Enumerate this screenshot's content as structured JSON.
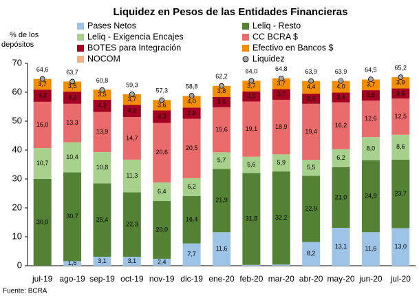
{
  "chart_data": {
    "type": "stacked_bar",
    "title": "Liquidez en Pesos de las Entidades Financieras",
    "ylabel": "% de los depósitos",
    "source": "Fuente: BCRA",
    "categories": [
      "jul-19",
      "ago-19",
      "sep-19",
      "oct-19",
      "nov-19",
      "dic-19",
      "ene-20",
      "feb-20",
      "mar-20",
      "abr-20",
      "may-20",
      "jun-20",
      "jul-20"
    ],
    "ylim": [
      0,
      70
    ],
    "yticks": [
      0,
      10,
      20,
      30,
      40,
      50,
      60,
      70
    ],
    "grid": false,
    "series": [
      {
        "name": "Pases Netos",
        "color": "#9dc3e6",
        "values": [
          0,
          1.6,
          3.1,
          3.1,
          2.4,
          7.7,
          11.6,
          0.3,
          0.4,
          8.2,
          13.1,
          11.6,
          13.0
        ],
        "value_labels": [
          null,
          "1,6",
          "3,1",
          "3,1",
          "2,4",
          "7,7",
          "11,6",
          null,
          null,
          "8,2",
          "13,1",
          "11,6",
          "13,0"
        ]
      },
      {
        "name": "Leliq - Resto",
        "color": "#548235",
        "values": [
          30.0,
          30.7,
          25.4,
          22.3,
          20.0,
          16.4,
          21.9,
          31.8,
          32.2,
          22.9,
          21.0,
          24.9,
          23.7
        ],
        "value_labels": [
          "30,0",
          "30,7",
          "25,4",
          "22,3",
          "20,0",
          "16,4",
          "21,9",
          "31,8",
          "32,2",
          "22,9",
          "21,0",
          "24,9",
          "23,7"
        ]
      },
      {
        "name": "Leliq - Exigencia Encajes",
        "color": "#a9d18e",
        "values": [
          10.7,
          10.4,
          10.8,
          11.3,
          6.4,
          6.2,
          5.7,
          5.6,
          5.9,
          5.5,
          6.2,
          8.0,
          8.6
        ],
        "value_labels": [
          "10,7",
          "10,4",
          "10,8",
          "11,3",
          "6,4",
          "6,2",
          "5,7",
          "5,6",
          "5,9",
          "5,5",
          "6,2",
          "8,0",
          "8,6"
        ]
      },
      {
        "name": "CC BCRA $",
        "color": "#ea6b6b",
        "values": [
          16.0,
          13.3,
          13.9,
          14.7,
          20.6,
          20.5,
          15.6,
          19.1,
          18.9,
          19.4,
          16.2,
          12.6,
          12.5
        ],
        "value_labels": [
          "16,0",
          "13,3",
          "13,9",
          "14,7",
          "20,6",
          "20,5",
          "15,6",
          "19,1",
          "18,9",
          "19,4",
          "16,2",
          "12,6",
          "12,5"
        ]
      },
      {
        "name": "BOTES para Integración",
        "color": "#a50021",
        "values": [
          4.2,
          4.2,
          4.2,
          4.2,
          4.3,
          3.9,
          3.6,
          3.5,
          3.7,
          3.5,
          3.4,
          3.6,
          3.5
        ],
        "value_labels": [
          "4,2",
          "4,2",
          "4,2",
          "4,2",
          "4,3",
          "3,9",
          "3,6",
          "3,5",
          "3,7",
          "3,5",
          "3,4",
          "3,6",
          "3,5"
        ]
      },
      {
        "name": "Efectivo en Bancos $",
        "color": "#f28e00",
        "values": [
          3.7,
          3.5,
          3.5,
          3.7,
          3.6,
          4.0,
          3.8,
          3.7,
          3.7,
          4.4,
          4.0,
          3.7,
          3.9
        ],
        "value_labels": [
          "3,7",
          "3,5",
          "3,5",
          "3,7",
          "3,6",
          "4,0",
          "3,8",
          "3,7",
          "3,7",
          "4,4",
          "4,0",
          "3,7",
          "3,9"
        ]
      },
      {
        "name": "NOCOM",
        "color": "#f4b183",
        "values": [
          0,
          0,
          0,
          0,
          0,
          0,
          0,
          0,
          0,
          0,
          0,
          0,
          0
        ],
        "value_labels": [
          null,
          null,
          null,
          null,
          null,
          null,
          null,
          null,
          null,
          null,
          null,
          null,
          null
        ]
      },
      {
        "name": "Liquidez",
        "color": "#a6a6a6",
        "type": "marker",
        "values": [
          64.6,
          63.7,
          60.8,
          59.3,
          57.3,
          58.8,
          62.2,
          64.0,
          64.8,
          63.9,
          63.9,
          64.5,
          65.2
        ],
        "value_labels": [
          "64,6",
          "63,7",
          "60,8",
          "59,3",
          "57,3",
          "58,8",
          "62,2",
          "64,0",
          "64,8",
          "63,9",
          "63,9",
          "64,5",
          "65,2"
        ]
      }
    ]
  }
}
